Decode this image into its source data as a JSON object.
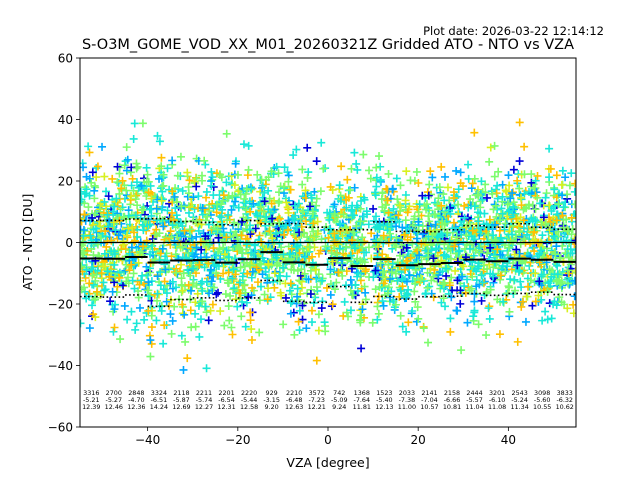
{
  "chart_data": {
    "type": "scatter",
    "title": "S-O3M_GOME_VOD_XX_M01_20260321Z Gridded ATO - NTO vs VZA",
    "subtitle": "Plot date: 2026-03-22 12:14:12",
    "xlabel": "VZA [degree]",
    "ylabel": "ATO - NTO [DU]",
    "xlim": [
      -55,
      55
    ],
    "ylim": [
      -60,
      60
    ],
    "xticks": [
      -40,
      -20,
      0,
      20,
      40
    ],
    "yticks": [
      -60,
      -40,
      -20,
      0,
      20,
      40,
      60
    ],
    "xtick_labels": [
      "−40",
      "−20",
      "0",
      "20",
      "40"
    ],
    "ytick_labels": [
      "−60",
      "−40",
      "−20",
      "0",
      "20",
      "40",
      "60"
    ],
    "grid": false,
    "marker": "plus",
    "colormap": [
      "#0000d8",
      "#00a8ff",
      "#18e8d8",
      "#7cfc6c",
      "#d8f020",
      "#ffc000"
    ],
    "zero_line": 0,
    "bins": {
      "edges_start": -55,
      "width": 5,
      "counts": [
        "3316",
        "2700",
        "2848",
        "3324",
        "2118",
        "2211",
        "2201",
        "2220",
        "929",
        "2210",
        "3572",
        "742",
        "1368",
        "1523",
        "2033",
        "2141",
        "2158",
        "2444",
        "3201",
        "2543",
        "3098",
        "3833"
      ],
      "means": [
        "-5.21",
        "-5.27",
        "-4.70",
        "-6.51",
        "-5.87",
        "-5.74",
        "-6.54",
        "-5.44",
        "-3.15",
        "-6.48",
        "-7.23",
        "-5.09",
        "-7.64",
        "-5.40",
        "-7.38",
        "-7.04",
        "-6.66",
        "-5.57",
        "-6.10",
        "-5.24",
        "-5.60",
        "-6.32"
      ],
      "stds": [
        "12.39",
        "12.46",
        "12.36",
        "14.24",
        "12.69",
        "12.27",
        "12.31",
        "12.58",
        "9.20",
        "12.63",
        "12.21",
        "9.24",
        "11.81",
        "12.13",
        "11.00",
        "10.57",
        "10.81",
        "11.04",
        "11.08",
        "11.34",
        "10.55",
        "10.62"
      ]
    }
  }
}
